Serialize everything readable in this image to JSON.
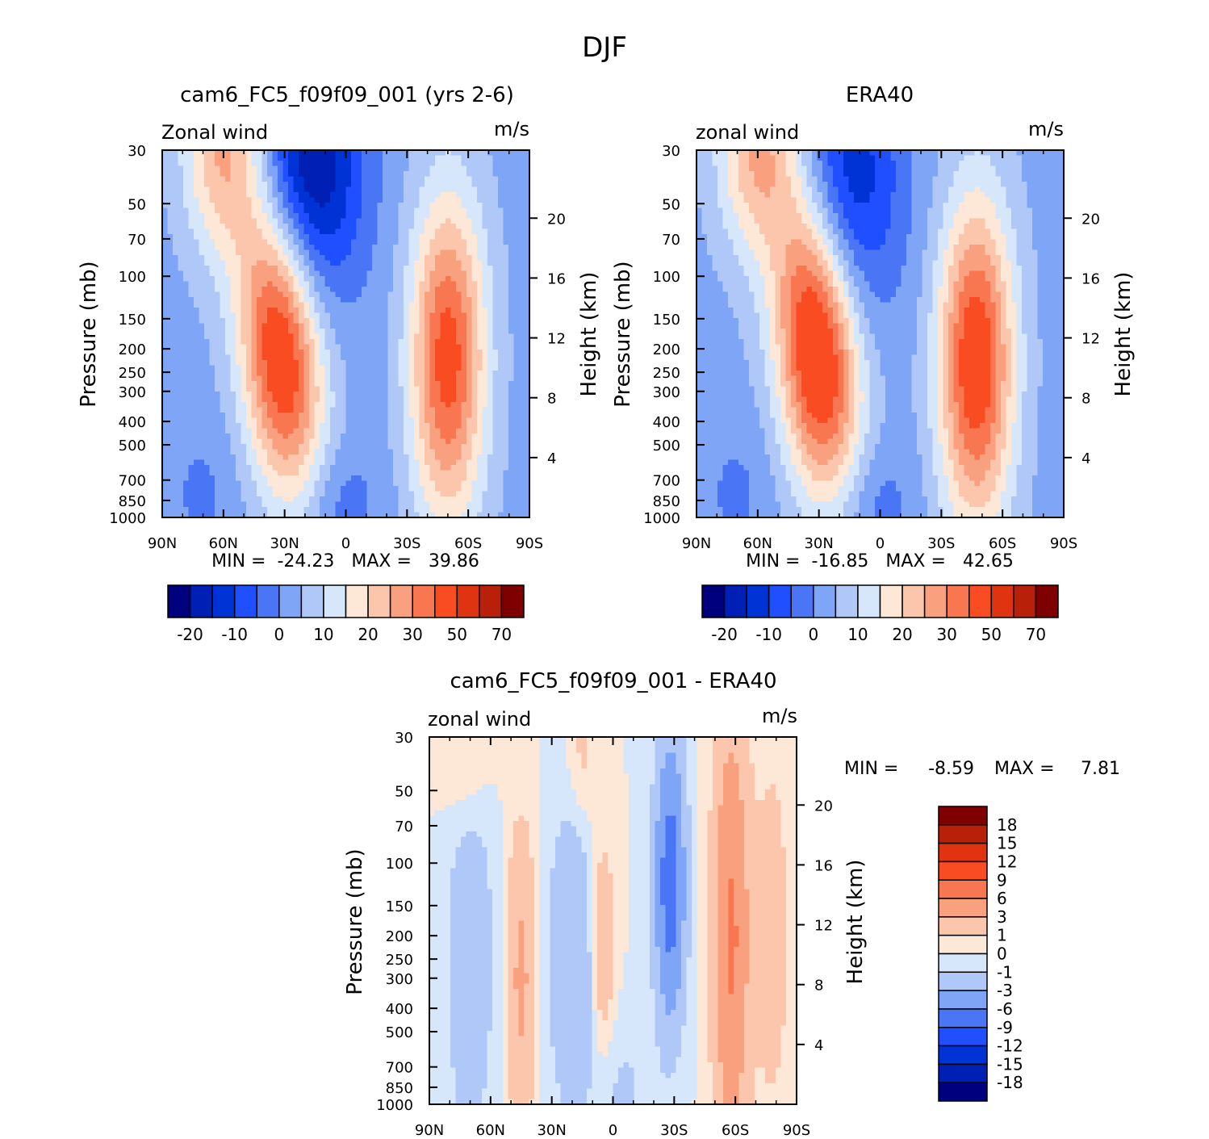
{
  "figure": {
    "title": "DJF"
  },
  "colors": {
    "main_scale": [
      "#00007f",
      "#001fb5",
      "#0033d6",
      "#1f4fff",
      "#4a75f5",
      "#7fa5f7",
      "#b0c8f7",
      "#d6e6fb",
      "#fde7d6",
      "#fbc6ab",
      "#f9a07e",
      "#f87650",
      "#f94c22",
      "#e03410",
      "#b8200a",
      "#7f0000"
    ],
    "diff_scale": [
      "#00007f",
      "#001fb5",
      "#0033d6",
      "#1f4fff",
      "#4a75f5",
      "#7fa5f7",
      "#b0c8f7",
      "#d6e6fb",
      "#fde7d6",
      "#fbc6ab",
      "#f9a07e",
      "#f87650",
      "#f94c22",
      "#e03410",
      "#b8200a",
      "#7f0000"
    ]
  },
  "chart_data": [
    {
      "type": "heatmap",
      "id": "model",
      "title": "cam6_FC5_f09f09_001 (yrs 2-6)",
      "left_label": "Zonal wind",
      "right_label": "m/s",
      "xlabel": "",
      "ylabel": "Pressure (mb)",
      "y2label": "Height (km)",
      "xticks": [
        "90N",
        "60N",
        "30N",
        "0",
        "30S",
        "60S",
        "90S"
      ],
      "yticks": [
        "30",
        "50",
        "70",
        "100",
        "150",
        "200",
        "250",
        "300",
        "400",
        "500",
        "700",
        "850",
        "1000"
      ],
      "y2ticks": [
        "4",
        "8",
        "12",
        "16",
        "20"
      ],
      "ylim": [
        1000,
        30
      ],
      "min": "-24.23",
      "max": "39.86",
      "stats": "MIN =  -24.23   MAX =   39.86",
      "colorbar_ticks": [
        "-20",
        "-10",
        "0",
        "10",
        "20",
        "30",
        "50",
        "70"
      ],
      "jets": [
        {
          "lat": 32,
          "p": 200,
          "peak": 39.86
        },
        {
          "lat": -50,
          "p": 220,
          "peak": 35
        },
        {
          "lat": 18,
          "p": 35,
          "peak": -24.23
        }
      ]
    },
    {
      "type": "heatmap",
      "id": "obs",
      "title": "ERA40",
      "left_label": "zonal wind",
      "right_label": "m/s",
      "xlabel": "",
      "ylabel": "Pressure (mb)",
      "y2label": "Height (km)",
      "xticks": [
        "90N",
        "60N",
        "30N",
        "0",
        "30S",
        "60S",
        "90S"
      ],
      "yticks": [
        "30",
        "50",
        "70",
        "100",
        "150",
        "200",
        "250",
        "300",
        "400",
        "500",
        "700",
        "850",
        "1000"
      ],
      "y2ticks": [
        "4",
        "8",
        "12",
        "16",
        "20"
      ],
      "ylim": [
        1000,
        30
      ],
      "min": "-16.85",
      "max": "42.65",
      "stats": "MIN =  -16.85   MAX =   42.65",
      "colorbar_ticks": [
        "-20",
        "-10",
        "0",
        "10",
        "20",
        "30",
        "50",
        "70"
      ],
      "jets": [
        {
          "lat": 31,
          "p": 200,
          "peak": 42.65
        },
        {
          "lat": -47,
          "p": 230,
          "peak": 38
        },
        {
          "lat": 15,
          "p": 40,
          "peak": -16.85
        }
      ]
    },
    {
      "type": "heatmap",
      "id": "diff",
      "title": "cam6_FC5_f09f09_001 - ERA40",
      "left_label": "zonal wind",
      "right_label": "m/s",
      "xlabel": "",
      "ylabel": "Pressure (mb)",
      "y2label": "Height (km)",
      "xticks": [
        "90N",
        "60N",
        "30N",
        "0",
        "30S",
        "60S",
        "90S"
      ],
      "yticks": [
        "30",
        "50",
        "70",
        "100",
        "150",
        "200",
        "250",
        "300",
        "400",
        "500",
        "700",
        "850",
        "1000"
      ],
      "y2ticks": [
        "4",
        "8",
        "12",
        "16",
        "20"
      ],
      "ylim": [
        1000,
        30
      ],
      "min": "-8.59",
      "max": "7.81",
      "stats_min_label": "MIN =",
      "stats_min_value": "-8.59",
      "stats_max_label": "MAX =",
      "stats_max_value": "7.81",
      "colorbar_ticks": [
        "18",
        "15",
        "12",
        "9",
        "6",
        "3",
        "1",
        "0",
        "-1",
        "-3",
        "-6",
        "-9",
        "-12",
        "-15",
        "-18"
      ],
      "features": [
        {
          "lat": -58,
          "p": 200,
          "value": 7.81
        },
        {
          "lat": -28,
          "p": 120,
          "value": -8.59
        },
        {
          "lat": 45,
          "p": 250,
          "value": 4
        },
        {
          "lat": 5,
          "p": 220,
          "value": 3
        }
      ]
    }
  ]
}
